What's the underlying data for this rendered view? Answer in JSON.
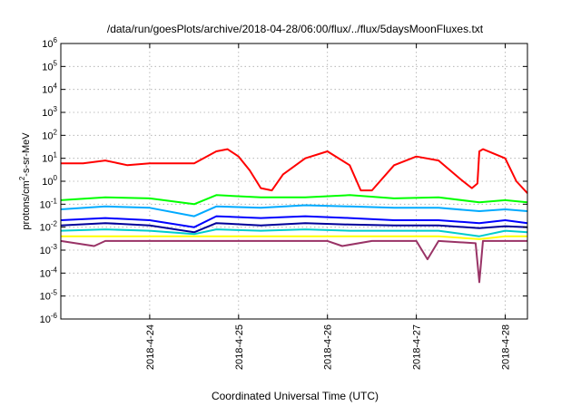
{
  "chart_data": {
    "type": "line",
    "title": "/data/run/goesPlots/archive/2018-04-28/06:00/flux/../flux/5daysMoonFluxes.txt",
    "xlabel": "Coordinated Universal Time (UTC)",
    "ylabel": {
      "base": "protons/cm",
      "sup": "2",
      "rest": "-s-sr-MeV"
    },
    "yscale": "log",
    "ylim": [
      1e-06,
      1000000.0
    ],
    "yticks": [
      {
        "value": 1e-06,
        "base": "10",
        "exp": "-6"
      },
      {
        "value": 1e-05,
        "base": "10",
        "exp": "-5"
      },
      {
        "value": 0.0001,
        "base": "10",
        "exp": "-4"
      },
      {
        "value": 0.001,
        "base": "10",
        "exp": "-3"
      },
      {
        "value": 0.01,
        "base": "10",
        "exp": "-2"
      },
      {
        "value": 0.1,
        "base": "10",
        "exp": "-1"
      },
      {
        "value": 1.0,
        "base": "10",
        "exp": "0"
      },
      {
        "value": 10.0,
        "base": "10",
        "exp": "1"
      },
      {
        "value": 100.0,
        "base": "10",
        "exp": "2"
      },
      {
        "value": 1000.0,
        "base": "10",
        "exp": "3"
      },
      {
        "value": 10000.0,
        "base": "10",
        "exp": "4"
      },
      {
        "value": 100000.0,
        "base": "10",
        "exp": "5"
      },
      {
        "value": 1000000.0,
        "base": "10",
        "exp": "6"
      }
    ],
    "xlim": [
      "2018-04-23T00:00",
      "2018-04-28T06:00"
    ],
    "xticks": [
      "2018-4-24",
      "2018-4-25",
      "2018-4-26",
      "2018-4-27",
      "2018-4-28"
    ],
    "grid": true,
    "series": [
      {
        "color": "#ff0000",
        "x": [
          "2018-04-23T00:00",
          "2018-04-23T06:00",
          "2018-04-23T12:00",
          "2018-04-23T18:00",
          "2018-04-24T00:00",
          "2018-04-24T06:00",
          "2018-04-24T12:00",
          "2018-04-24T18:00",
          "2018-04-24T21:00",
          "2018-04-25T00:00",
          "2018-04-25T03:00",
          "2018-04-25T06:00",
          "2018-04-25T09:00",
          "2018-04-25T12:00",
          "2018-04-25T18:00",
          "2018-04-26T00:00",
          "2018-04-26T06:00",
          "2018-04-26T09:00",
          "2018-04-26T12:00",
          "2018-04-26T18:00",
          "2018-04-27T00:00",
          "2018-04-27T06:00",
          "2018-04-27T12:00",
          "2018-04-27T15:00",
          "2018-04-27T16:30",
          "2018-04-27T17:00",
          "2018-04-27T18:00",
          "2018-04-28T00:00",
          "2018-04-28T03:00",
          "2018-04-28T06:00"
        ],
        "y": [
          6,
          6,
          8,
          5,
          6,
          6,
          6,
          20,
          25,
          12,
          3,
          0.5,
          0.4,
          2,
          10,
          20,
          5,
          0.4,
          0.4,
          5,
          12,
          8,
          1.2,
          0.5,
          0.8,
          20,
          25,
          10,
          1,
          0.3
        ]
      },
      {
        "color": "#00ff00",
        "x": [
          "2018-04-23T00:00",
          "2018-04-23T12:00",
          "2018-04-24T00:00",
          "2018-04-24T12:00",
          "2018-04-24T18:00",
          "2018-04-25T06:00",
          "2018-04-25T18:00",
          "2018-04-26T06:00",
          "2018-04-26T18:00",
          "2018-04-27T06:00",
          "2018-04-27T17:00",
          "2018-04-28T00:00",
          "2018-04-28T06:00"
        ],
        "y": [
          0.15,
          0.2,
          0.18,
          0.1,
          0.25,
          0.2,
          0.2,
          0.25,
          0.18,
          0.2,
          0.12,
          0.15,
          0.12
        ]
      },
      {
        "color": "#00aaff",
        "x": [
          "2018-04-23T00:00",
          "2018-04-23T12:00",
          "2018-04-24T00:00",
          "2018-04-24T12:00",
          "2018-04-24T18:00",
          "2018-04-25T06:00",
          "2018-04-25T18:00",
          "2018-04-26T06:00",
          "2018-04-26T18:00",
          "2018-04-27T06:00",
          "2018-04-27T17:00",
          "2018-04-28T00:00",
          "2018-04-28T06:00"
        ],
        "y": [
          0.06,
          0.08,
          0.07,
          0.03,
          0.08,
          0.07,
          0.09,
          0.08,
          0.07,
          0.07,
          0.05,
          0.06,
          0.05
        ]
      },
      {
        "color": "#0000ff",
        "x": [
          "2018-04-23T00:00",
          "2018-04-23T12:00",
          "2018-04-24T00:00",
          "2018-04-24T12:00",
          "2018-04-24T18:00",
          "2018-04-25T06:00",
          "2018-04-25T18:00",
          "2018-04-26T06:00",
          "2018-04-26T18:00",
          "2018-04-27T06:00",
          "2018-04-27T17:00",
          "2018-04-28T00:00",
          "2018-04-28T06:00"
        ],
        "y": [
          0.02,
          0.025,
          0.02,
          0.01,
          0.03,
          0.025,
          0.03,
          0.025,
          0.02,
          0.02,
          0.015,
          0.02,
          0.015
        ]
      },
      {
        "color": "#000099",
        "x": [
          "2018-04-23T00:00",
          "2018-04-23T12:00",
          "2018-04-24T00:00",
          "2018-04-24T12:00",
          "2018-04-24T18:00",
          "2018-04-25T06:00",
          "2018-04-25T18:00",
          "2018-04-26T06:00",
          "2018-04-26T18:00",
          "2018-04-27T06:00",
          "2018-04-27T17:00",
          "2018-04-28T00:00",
          "2018-04-28T06:00"
        ],
        "y": [
          0.012,
          0.015,
          0.012,
          0.006,
          0.015,
          0.012,
          0.015,
          0.013,
          0.012,
          0.012,
          0.009,
          0.011,
          0.01
        ]
      },
      {
        "color": "#00cccc",
        "x": [
          "2018-04-23T00:00",
          "2018-04-23T12:00",
          "2018-04-24T00:00",
          "2018-04-24T12:00",
          "2018-04-24T18:00",
          "2018-04-25T06:00",
          "2018-04-25T18:00",
          "2018-04-26T06:00",
          "2018-04-26T18:00",
          "2018-04-27T06:00",
          "2018-04-27T17:00",
          "2018-04-28T00:00",
          "2018-04-28T06:00"
        ],
        "y": [
          0.007,
          0.008,
          0.007,
          0.005,
          0.008,
          0.007,
          0.008,
          0.007,
          0.007,
          0.007,
          0.004,
          0.007,
          0.006
        ]
      },
      {
        "color": "#ffff00",
        "x": [
          "2018-04-23T00:00",
          "2018-04-23T12:00",
          "2018-04-24T00:00",
          "2018-04-24T12:00",
          "2018-04-24T18:00",
          "2018-04-25T06:00",
          "2018-04-25T18:00",
          "2018-04-26T06:00",
          "2018-04-26T18:00",
          "2018-04-27T06:00",
          "2018-04-27T17:00",
          "2018-04-28T00:00",
          "2018-04-28T06:00"
        ],
        "y": [
          0.004,
          0.004,
          0.004,
          0.004,
          0.004,
          0.004,
          0.004,
          0.004,
          0.004,
          0.004,
          0.003,
          0.004,
          0.004
        ]
      },
      {
        "color": "#993366",
        "x": [
          "2018-04-23T00:00",
          "2018-04-23T09:00",
          "2018-04-23T12:00",
          "2018-04-24T00:00",
          "2018-04-24T12:00",
          "2018-04-25T00:00",
          "2018-04-25T12:00",
          "2018-04-26T00:00",
          "2018-04-26T04:00",
          "2018-04-26T12:00",
          "2018-04-27T00:00",
          "2018-04-27T03:00",
          "2018-04-27T06:00",
          "2018-04-27T16:00",
          "2018-04-27T17:00",
          "2018-04-27T18:00",
          "2018-04-28T00:00",
          "2018-04-28T06:00"
        ],
        "y": [
          0.0025,
          0.0015,
          0.0025,
          0.0025,
          0.0025,
          0.0025,
          0.0025,
          0.0025,
          0.0015,
          0.0025,
          0.0025,
          0.0004,
          0.0025,
          0.002,
          4e-05,
          0.0025,
          0.0025,
          0.0025
        ]
      }
    ]
  }
}
